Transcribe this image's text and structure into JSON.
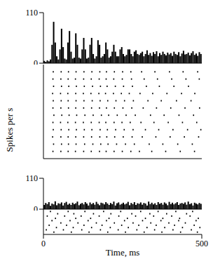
{
  "chart_data": [
    {
      "type": "histogram",
      "ylabel": "Spikes per s",
      "color": "#000000",
      "xlim": [
        0,
        500
      ],
      "ylim": [
        0,
        110
      ],
      "yticks": [
        0,
        110
      ],
      "tick_labels": "y",
      "bins": [
        0,
        5,
        10,
        15,
        20,
        25,
        30,
        35,
        40,
        45,
        50,
        55,
        60,
        65,
        70,
        75,
        80,
        85,
        90,
        95,
        100,
        105,
        110,
        115,
        120,
        125,
        130,
        135,
        140,
        145,
        150,
        155,
        160,
        165,
        170,
        175,
        180,
        185,
        190,
        195,
        200,
        205,
        210,
        215,
        220,
        225,
        230,
        235,
        240,
        245,
        250,
        255,
        260,
        265,
        270,
        275,
        280,
        285,
        290,
        295,
        300,
        305,
        310,
        315,
        320,
        325,
        330,
        335,
        340,
        345,
        350,
        355,
        360,
        365,
        370,
        375,
        380,
        385,
        390,
        395,
        400,
        405,
        410,
        415,
        420,
        425,
        430,
        435,
        440,
        445,
        450,
        455,
        460,
        465,
        470,
        475,
        480,
        485,
        490,
        495,
        500
      ],
      "counts": [
        5,
        3,
        6,
        4,
        8,
        40,
        90,
        45,
        15,
        8,
        30,
        75,
        35,
        10,
        8,
        45,
        70,
        25,
        10,
        12,
        65,
        40,
        12,
        10,
        30,
        55,
        30,
        10,
        12,
        40,
        55,
        20,
        10,
        15,
        50,
        40,
        12,
        15,
        20,
        45,
        30,
        12,
        15,
        25,
        40,
        25,
        15,
        15,
        30,
        35,
        20,
        15,
        18,
        30,
        30,
        20,
        15,
        25,
        28,
        20,
        18,
        22,
        25,
        15,
        20,
        28,
        18,
        22,
        16,
        24,
        20,
        26,
        15,
        22,
        18,
        25,
        20,
        17,
        23,
        19,
        22,
        16,
        25,
        20,
        18,
        24,
        15,
        21,
        27,
        19,
        20,
        23,
        17,
        22,
        26,
        18,
        21,
        16,
        24,
        20
      ]
    },
    {
      "type": "scatter",
      "color": "#000000",
      "marker": "square",
      "xlim": [
        0,
        500
      ],
      "ylim": [
        0,
        13
      ],
      "tick_labels": false,
      "points": [
        [
          31,
          12
        ],
        [
          56,
          12
        ],
        [
          79,
          12
        ],
        [
          103,
          12
        ],
        [
          128,
          12
        ],
        [
          153,
          12
        ],
        [
          178,
          12
        ],
        [
          199,
          12
        ],
        [
          224,
          12
        ],
        [
          250,
          12
        ],
        [
          276,
          12
        ],
        [
          310,
          12
        ],
        [
          352,
          12
        ],
        [
          398,
          12
        ],
        [
          441,
          12
        ],
        [
          487,
          12
        ],
        [
          30,
          11
        ],
        [
          55,
          11
        ],
        [
          78,
          11
        ],
        [
          101,
          11
        ],
        [
          127,
          11
        ],
        [
          151,
          11
        ],
        [
          176,
          11
        ],
        [
          198,
          11
        ],
        [
          222,
          11
        ],
        [
          249,
          11
        ],
        [
          278,
          11
        ],
        [
          318,
          11
        ],
        [
          360,
          11
        ],
        [
          405,
          11
        ],
        [
          450,
          11
        ],
        [
          492,
          11
        ],
        [
          32,
          10
        ],
        [
          57,
          10
        ],
        [
          80,
          10
        ],
        [
          104,
          10
        ],
        [
          129,
          10
        ],
        [
          155,
          10
        ],
        [
          180,
          10
        ],
        [
          201,
          10
        ],
        [
          227,
          10
        ],
        [
          253,
          10
        ],
        [
          281,
          10
        ],
        [
          325,
          10
        ],
        [
          366,
          10
        ],
        [
          412,
          10
        ],
        [
          458,
          10
        ],
        [
          29,
          9
        ],
        [
          54,
          9
        ],
        [
          77,
          9
        ],
        [
          102,
          9
        ],
        [
          126,
          9
        ],
        [
          150,
          9
        ],
        [
          175,
          9
        ],
        [
          196,
          9
        ],
        [
          221,
          9
        ],
        [
          246,
          9
        ],
        [
          271,
          9
        ],
        [
          305,
          9
        ],
        [
          345,
          9
        ],
        [
          390,
          9
        ],
        [
          436,
          9
        ],
        [
          478,
          9
        ],
        [
          31,
          8
        ],
        [
          56,
          8
        ],
        [
          78,
          8
        ],
        [
          103,
          8
        ],
        [
          128,
          8
        ],
        [
          154,
          8
        ],
        [
          179,
          8
        ],
        [
          203,
          8
        ],
        [
          229,
          8
        ],
        [
          256,
          8
        ],
        [
          284,
          8
        ],
        [
          330,
          8
        ],
        [
          372,
          8
        ],
        [
          420,
          8
        ],
        [
          466,
          8
        ],
        [
          30,
          7
        ],
        [
          55,
          7
        ],
        [
          79,
          7
        ],
        [
          102,
          7
        ],
        [
          127,
          7
        ],
        [
          152,
          7
        ],
        [
          177,
          7
        ],
        [
          199,
          7
        ],
        [
          224,
          7
        ],
        [
          251,
          7
        ],
        [
          279,
          7
        ],
        [
          315,
          7
        ],
        [
          357,
          7
        ],
        [
          402,
          7
        ],
        [
          447,
          7
        ],
        [
          493,
          7
        ],
        [
          33,
          6
        ],
        [
          58,
          6
        ],
        [
          81,
          6
        ],
        [
          105,
          6
        ],
        [
          131,
          6
        ],
        [
          157,
          6
        ],
        [
          183,
          6
        ],
        [
          206,
          6
        ],
        [
          233,
          6
        ],
        [
          261,
          6
        ],
        [
          290,
          6
        ],
        [
          338,
          6
        ],
        [
          381,
          6
        ],
        [
          428,
          6
        ],
        [
          474,
          6
        ],
        [
          30,
          5
        ],
        [
          54,
          5
        ],
        [
          77,
          5
        ],
        [
          101,
          5
        ],
        [
          126,
          5
        ],
        [
          151,
          5
        ],
        [
          176,
          5
        ],
        [
          197,
          5
        ],
        [
          223,
          5
        ],
        [
          248,
          5
        ],
        [
          274,
          5
        ],
        [
          308,
          5
        ],
        [
          349,
          5
        ],
        [
          394,
          5
        ],
        [
          439,
          5
        ],
        [
          484,
          5
        ],
        [
          31,
          4
        ],
        [
          56,
          4
        ],
        [
          80,
          4
        ],
        [
          104,
          4
        ],
        [
          129,
          4
        ],
        [
          153,
          4
        ],
        [
          179,
          4
        ],
        [
          202,
          4
        ],
        [
          228,
          4
        ],
        [
          255,
          4
        ],
        [
          283,
          4
        ],
        [
          322,
          4
        ],
        [
          364,
          4
        ],
        [
          409,
          4
        ],
        [
          455,
          4
        ],
        [
          497,
          4
        ],
        [
          29,
          3
        ],
        [
          55,
          3
        ],
        [
          78,
          3
        ],
        [
          102,
          3
        ],
        [
          127,
          3
        ],
        [
          152,
          3
        ],
        [
          178,
          3
        ],
        [
          200,
          3
        ],
        [
          225,
          3
        ],
        [
          252,
          3
        ],
        [
          280,
          3
        ],
        [
          312,
          3
        ],
        [
          355,
          3
        ],
        [
          400,
          3
        ],
        [
          445,
          3
        ],
        [
          490,
          3
        ],
        [
          32,
          2
        ],
        [
          57,
          2
        ],
        [
          79,
          2
        ],
        [
          103,
          2
        ],
        [
          130,
          2
        ],
        [
          156,
          2
        ],
        [
          181,
          2
        ],
        [
          204,
          2
        ],
        [
          231,
          2
        ],
        [
          259,
          2
        ],
        [
          287,
          2
        ],
        [
          334,
          2
        ],
        [
          377,
          2
        ],
        [
          424,
          2
        ],
        [
          470,
          2
        ],
        [
          30,
          1
        ],
        [
          55,
          1
        ],
        [
          78,
          1
        ],
        [
          101,
          1
        ],
        [
          127,
          1
        ],
        [
          151,
          1
        ],
        [
          177,
          1
        ],
        [
          198,
          1
        ],
        [
          223,
          1
        ],
        [
          249,
          1
        ],
        [
          276,
          1
        ],
        [
          303,
          1
        ],
        [
          342,
          1
        ],
        [
          386,
          1
        ],
        [
          432,
          1
        ],
        [
          477,
          1
        ]
      ]
    },
    {
      "type": "histogram",
      "color": "#000000",
      "xlim": [
        0,
        500
      ],
      "ylim": [
        0,
        110
      ],
      "yticks": [
        0,
        110
      ],
      "tick_labels": "y",
      "bins": [
        0,
        5,
        10,
        15,
        20,
        25,
        30,
        35,
        40,
        45,
        50,
        55,
        60,
        65,
        70,
        75,
        80,
        85,
        90,
        95,
        100,
        105,
        110,
        115,
        120,
        125,
        130,
        135,
        140,
        145,
        150,
        155,
        160,
        165,
        170,
        175,
        180,
        185,
        190,
        195,
        200,
        205,
        210,
        215,
        220,
        225,
        230,
        235,
        240,
        245,
        250,
        255,
        260,
        265,
        270,
        275,
        280,
        285,
        290,
        295,
        300,
        305,
        310,
        315,
        320,
        325,
        330,
        335,
        340,
        345,
        350,
        355,
        360,
        365,
        370,
        375,
        380,
        385,
        390,
        395,
        400,
        405,
        410,
        415,
        420,
        425,
        430,
        435,
        440,
        445,
        450,
        455,
        460,
        465,
        470,
        475,
        480,
        485,
        490,
        495,
        500
      ],
      "counts": [
        15,
        22,
        18,
        25,
        12,
        20,
        17,
        28,
        14,
        21,
        19,
        24,
        13,
        22,
        26,
        16,
        20,
        15,
        23,
        18,
        21,
        27,
        14,
        19,
        22,
        17,
        25,
        20,
        13,
        24,
        18,
        22,
        16,
        26,
        19,
        14,
        23,
        21,
        17,
        25,
        20,
        15,
        22,
        18,
        27,
        13,
        21,
        24,
        16,
        19,
        23,
        17,
        20,
        26,
        14,
        22,
        18,
        25,
        15,
        21,
        19,
        24,
        16,
        22,
        20,
        13,
        27,
        18,
        23,
        17,
        21,
        15,
        25,
        19,
        22,
        16,
        24,
        20,
        14,
        26,
        18,
        23,
        17,
        21,
        25,
        15,
        20,
        22,
        19,
        24,
        16,
        27,
        18,
        21,
        13,
        23,
        20,
        17,
        22,
        19
      ]
    },
    {
      "type": "scatter",
      "color": "#000000",
      "marker": "square",
      "xlabel": "Time, ms",
      "xlim": [
        0,
        500
      ],
      "xticks": [
        0,
        500
      ],
      "ylim": [
        0,
        11
      ],
      "tick_labels": "x",
      "points": [
        [
          22,
          10
        ],
        [
          78,
          10
        ],
        [
          131,
          10
        ],
        [
          190,
          10
        ],
        [
          244,
          10
        ],
        [
          307,
          10
        ],
        [
          362,
          10
        ],
        [
          418,
          10
        ],
        [
          471,
          10
        ],
        [
          45,
          9
        ],
        [
          96,
          9
        ],
        [
          158,
          9
        ],
        [
          213,
          9
        ],
        [
          279,
          9
        ],
        [
          336,
          9
        ],
        [
          389,
          9
        ],
        [
          452,
          9
        ],
        [
          12,
          8
        ],
        [
          67,
          8
        ],
        [
          119,
          8
        ],
        [
          176,
          8
        ],
        [
          238,
          8
        ],
        [
          291,
          8
        ],
        [
          348,
          8
        ],
        [
          405,
          8
        ],
        [
          463,
          8
        ],
        [
          38,
          7
        ],
        [
          102,
          7
        ],
        [
          149,
          7
        ],
        [
          207,
          7
        ],
        [
          265,
          7
        ],
        [
          322,
          7
        ],
        [
          377,
          7
        ],
        [
          430,
          7
        ],
        [
          489,
          7
        ],
        [
          27,
          6
        ],
        [
          84,
          6
        ],
        [
          141,
          6
        ],
        [
          199,
          6
        ],
        [
          256,
          6
        ],
        [
          313,
          6
        ],
        [
          371,
          6
        ],
        [
          427,
          6
        ],
        [
          482,
          6
        ],
        [
          55,
          5
        ],
        [
          109,
          5
        ],
        [
          167,
          5
        ],
        [
          224,
          5
        ],
        [
          283,
          5
        ],
        [
          339,
          5
        ],
        [
          396,
          5
        ],
        [
          448,
          5
        ],
        [
          18,
          4
        ],
        [
          73,
          4
        ],
        [
          128,
          4
        ],
        [
          185,
          4
        ],
        [
          247,
          4
        ],
        [
          301,
          4
        ],
        [
          356,
          4
        ],
        [
          414,
          4
        ],
        [
          476,
          4
        ],
        [
          41,
          3
        ],
        [
          94,
          3
        ],
        [
          152,
          3
        ],
        [
          211,
          3
        ],
        [
          268,
          3
        ],
        [
          327,
          3
        ],
        [
          383,
          3
        ],
        [
          439,
          3
        ],
        [
          494,
          3
        ],
        [
          9,
          2
        ],
        [
          63,
          2
        ],
        [
          121,
          2
        ],
        [
          180,
          2
        ],
        [
          236,
          2
        ],
        [
          295,
          2
        ],
        [
          351,
          2
        ],
        [
          409,
          2
        ],
        [
          467,
          2
        ],
        [
          33,
          1
        ],
        [
          88,
          1
        ],
        [
          144,
          1
        ],
        [
          203,
          1
        ],
        [
          259,
          1
        ],
        [
          318,
          1
        ],
        [
          374,
          1
        ],
        [
          433,
          1
        ],
        [
          486,
          1
        ]
      ]
    }
  ]
}
